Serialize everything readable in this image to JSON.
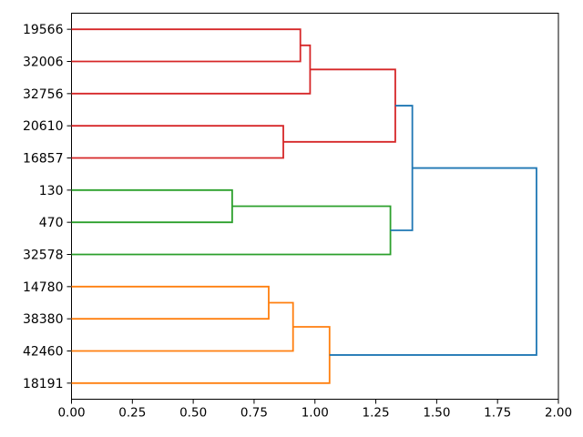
{
  "chart_data": {
    "type": "dendrogram",
    "orientation": "left",
    "title": "",
    "xlabel": "",
    "ylabel": "",
    "grid": false,
    "legend": null,
    "xlim": [
      0.0,
      2.0
    ],
    "x_ticks": [
      "0.00",
      "0.25",
      "0.50",
      "0.75",
      "1.00",
      "1.25",
      "1.50",
      "1.75",
      "2.00"
    ],
    "leaves": [
      "19566",
      "32006",
      "32756",
      "20610",
      "16857",
      "130",
      "470",
      "32578",
      "14780",
      "38380",
      "42460",
      "18191"
    ],
    "colors": {
      "cluster_red": "#d62728",
      "cluster_green": "#2ca02c",
      "cluster_orange": "#ff7f0e",
      "above_threshold_blue": "#1f77b4",
      "axis": "#000000",
      "background": "#ffffff"
    },
    "links": [
      {
        "children": [
          {
            "leaf": 0
          },
          {
            "leaf": 1
          }
        ],
        "height": 0.94,
        "color": "#d62728"
      },
      {
        "children": [
          {
            "link": 0
          },
          {
            "leaf": 2
          }
        ],
        "height": 0.98,
        "color": "#d62728"
      },
      {
        "children": [
          {
            "leaf": 3
          },
          {
            "leaf": 4
          }
        ],
        "height": 0.87,
        "color": "#d62728"
      },
      {
        "children": [
          {
            "link": 1
          },
          {
            "link": 2
          }
        ],
        "height": 1.33,
        "color": "#d62728"
      },
      {
        "children": [
          {
            "leaf": 5
          },
          {
            "leaf": 6
          }
        ],
        "height": 0.66,
        "color": "#2ca02c"
      },
      {
        "children": [
          {
            "link": 4
          },
          {
            "leaf": 7
          }
        ],
        "height": 1.31,
        "color": "#2ca02c"
      },
      {
        "children": [
          {
            "leaf": 8
          },
          {
            "leaf": 9
          }
        ],
        "height": 0.81,
        "color": "#ff7f0e"
      },
      {
        "children": [
          {
            "link": 6
          },
          {
            "leaf": 10
          }
        ],
        "height": 0.91,
        "color": "#ff7f0e"
      },
      {
        "children": [
          {
            "link": 7
          },
          {
            "leaf": 11
          }
        ],
        "height": 1.06,
        "color": "#ff7f0e"
      },
      {
        "children": [
          {
            "link": 3
          },
          {
            "link": 5
          }
        ],
        "height": 1.4,
        "color": "#1f77b4"
      },
      {
        "children": [
          {
            "link": 9
          },
          {
            "link": 8
          }
        ],
        "height": 1.91,
        "color": "#1f77b4"
      }
    ]
  }
}
